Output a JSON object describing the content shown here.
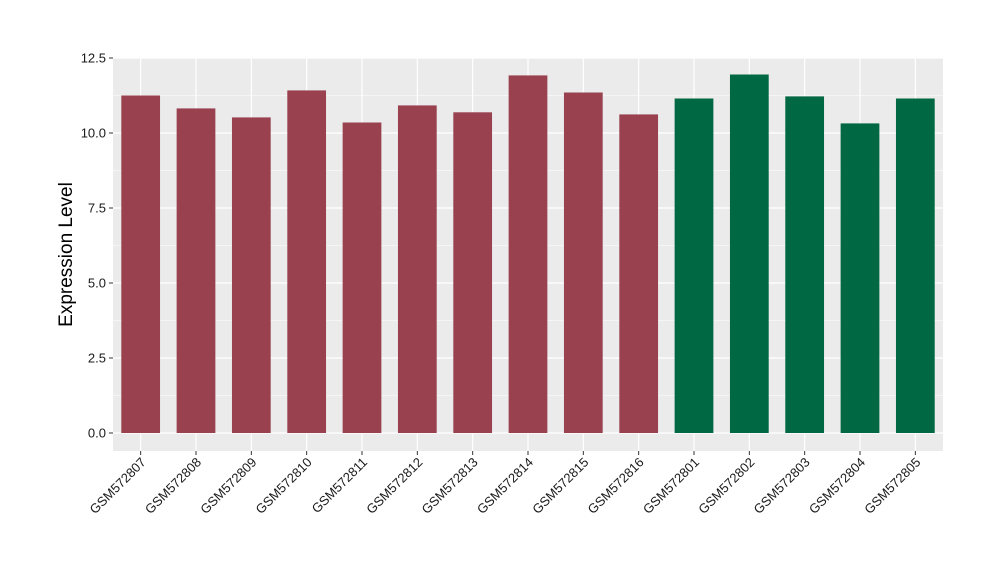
{
  "chart_data": {
    "type": "bar",
    "title": "",
    "xlabel": "",
    "ylabel": "Expression Level",
    "ylim": [
      -0.6,
      12.5
    ],
    "yticks": [
      0.0,
      2.5,
      5.0,
      7.5,
      10.0,
      12.5
    ],
    "ytick_labels": [
      "0.0",
      "2.5",
      "5.0",
      "7.5",
      "10.0",
      "12.5"
    ],
    "grid": true,
    "legend": "none",
    "categories": [
      "GSM572807",
      "GSM572808",
      "GSM572809",
      "GSM572810",
      "GSM572811",
      "GSM572812",
      "GSM572813",
      "GSM572814",
      "GSM572815",
      "GSM572816",
      "GSM572801",
      "GSM572802",
      "GSM572803",
      "GSM572804",
      "GSM572805"
    ],
    "values": [
      11.25,
      10.82,
      10.52,
      11.42,
      10.35,
      10.92,
      10.69,
      11.92,
      11.35,
      10.62,
      11.15,
      11.95,
      11.22,
      10.32,
      11.15
    ],
    "bar_colors": [
      "#9a4150",
      "#9a4150",
      "#9a4150",
      "#9a4150",
      "#9a4150",
      "#9a4150",
      "#9a4150",
      "#9a4150",
      "#9a4150",
      "#9a4150",
      "#006843",
      "#006843",
      "#006843",
      "#006843",
      "#006843"
    ],
    "panel_background": "#ebebeb",
    "grid_color": "#ffffff"
  }
}
